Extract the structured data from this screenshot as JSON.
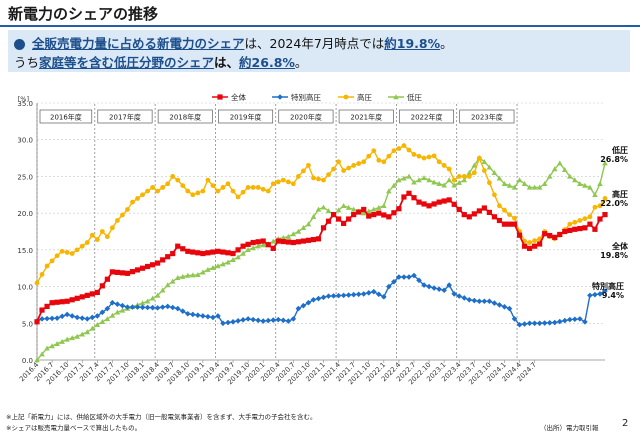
{
  "header": {
    "title": "新電力のシェアの推移",
    "l1_part1": "全販売電力量に占める新電力のシェア",
    "l1_part2": "は、2024年7月時点では",
    "l1_part3": "約19.8%",
    "l1_part4": "。",
    "l2_part1": "うち",
    "l2_part2": "家庭等を含む低圧分野のシェア",
    "l2_part3": "は、",
    "l2_part4": "約26.8%",
    "l2_part5": "。"
  },
  "colors": {
    "total": "#e8060d",
    "special": "#1e6fc9",
    "high": "#f7b500",
    "low": "#8fc750",
    "accent": "#1d4f8c"
  },
  "chart_data": {
    "type": "line",
    "title": "",
    "ylabel": "[%]",
    "ylim": [
      0,
      35
    ],
    "yticks": [
      "0.0",
      "5.0",
      "10.0",
      "15.0",
      "20.0",
      "25.0",
      "30.0",
      "35.0"
    ],
    "x_tick_labels": [
      "2016.4",
      "2016.7",
      "2016.10",
      "2017.1",
      "2017.4",
      "2017.7",
      "2017.10",
      "2018.1",
      "2018.4",
      "2018.7",
      "2018.10",
      "2019.1",
      "2019.4",
      "2019.7",
      "2019.10",
      "2020.1",
      "2020.4",
      "2020.7",
      "2020.10",
      "2021.1",
      "2021.4",
      "2021.7",
      "2021.10",
      "2022.1",
      "2022.4",
      "2022.7",
      "2022.10",
      "2023.1",
      "2023.4",
      "2023.7",
      "2023.10",
      "2024.1",
      "2024.4",
      "2024.7"
    ],
    "fiscal_years": [
      "2016年度",
      "2017年度",
      "2018年度",
      "2019年度",
      "2020年度",
      "2021年度",
      "2022年度",
      "2023年度"
    ],
    "legend": [
      "全体",
      "特別高圧",
      "高圧",
      "低圧"
    ],
    "series": [
      {
        "name": "全体",
        "key": "total",
        "anchors": [
          [
            0,
            5.2
          ],
          [
            1,
            6.8
          ],
          [
            3,
            7.8
          ],
          [
            6,
            8.0
          ],
          [
            9,
            8.6
          ],
          [
            12,
            9.2
          ],
          [
            14,
            11.0
          ],
          [
            15,
            12.0
          ],
          [
            18,
            11.8
          ],
          [
            21,
            12.5
          ],
          [
            24,
            13.2
          ],
          [
            27,
            14.5
          ],
          [
            28,
            15.5
          ],
          [
            30,
            14.8
          ],
          [
            33,
            14.5
          ],
          [
            36,
            14.8
          ],
          [
            39,
            14.5
          ],
          [
            41,
            15.5
          ],
          [
            43,
            16.0
          ],
          [
            45,
            16.2
          ],
          [
            47,
            15.2
          ],
          [
            48,
            16.2
          ],
          [
            51,
            16.0
          ],
          [
            54,
            16.3
          ],
          [
            56,
            16.5
          ],
          [
            57,
            18.0
          ],
          [
            59,
            19.8
          ],
          [
            61,
            18.6
          ],
          [
            63,
            19.8
          ],
          [
            65,
            20.5
          ],
          [
            66,
            19.6
          ],
          [
            68,
            20.0
          ],
          [
            70,
            19.5
          ],
          [
            72,
            20.6
          ],
          [
            73,
            22.2
          ],
          [
            74,
            22.7
          ],
          [
            76,
            21.5
          ],
          [
            78,
            21.0
          ],
          [
            80,
            21.5
          ],
          [
            82,
            21.8
          ],
          [
            83,
            21.2
          ],
          [
            85,
            19.8
          ],
          [
            86,
            19.5
          ],
          [
            88,
            20.3
          ],
          [
            89,
            20.7
          ],
          [
            91,
            19.5
          ],
          [
            93,
            18.5
          ],
          [
            95,
            18.5
          ],
          [
            96,
            17.0
          ],
          [
            97,
            15.5
          ],
          [
            98,
            15.2
          ],
          [
            100,
            15.8
          ],
          [
            101,
            17.2
          ],
          [
            103,
            16.7
          ],
          [
            105,
            17.5
          ],
          [
            107,
            17.8
          ],
          [
            109,
            18.0
          ],
          [
            110,
            18.5
          ],
          [
            111,
            17.8
          ],
          [
            112,
            19.2
          ],
          [
            113,
            19.8
          ]
        ],
        "end_label": "全体\n19.8%"
      },
      {
        "name": "特別高圧",
        "key": "special",
        "anchors": [
          [
            0,
            5.3
          ],
          [
            1,
            5.6
          ],
          [
            4,
            5.7
          ],
          [
            6,
            6.2
          ],
          [
            8,
            5.8
          ],
          [
            10,
            5.6
          ],
          [
            12,
            6.0
          ],
          [
            14,
            7.0
          ],
          [
            15,
            7.8
          ],
          [
            16,
            7.6
          ],
          [
            18,
            7.2
          ],
          [
            20,
            7.2
          ],
          [
            24,
            7.1
          ],
          [
            26,
            7.3
          ],
          [
            28,
            7.0
          ],
          [
            30,
            6.3
          ],
          [
            33,
            6.0
          ],
          [
            35,
            5.8
          ],
          [
            36,
            6.0
          ],
          [
            37,
            5.0
          ],
          [
            39,
            5.2
          ],
          [
            42,
            5.6
          ],
          [
            45,
            5.3
          ],
          [
            48,
            5.5
          ],
          [
            50,
            5.3
          ],
          [
            51,
            5.6
          ],
          [
            52,
            7.0
          ],
          [
            55,
            8.2
          ],
          [
            58,
            8.7
          ],
          [
            61,
            8.8
          ],
          [
            63,
            8.9
          ],
          [
            65,
            9.0
          ],
          [
            67,
            9.3
          ],
          [
            69,
            8.6
          ],
          [
            70,
            10.0
          ],
          [
            72,
            11.3
          ],
          [
            74,
            11.3
          ],
          [
            75,
            11.5
          ],
          [
            77,
            10.2
          ],
          [
            79,
            9.8
          ],
          [
            81,
            9.5
          ],
          [
            82,
            10.2
          ],
          [
            83,
            9.0
          ],
          [
            84,
            8.7
          ],
          [
            86,
            8.2
          ],
          [
            88,
            8.0
          ],
          [
            90,
            8.0
          ],
          [
            92,
            7.5
          ],
          [
            94,
            7.0
          ],
          [
            95,
            5.6
          ],
          [
            96,
            4.8
          ],
          [
            98,
            5.0
          ],
          [
            100,
            5.0
          ],
          [
            103,
            5.1
          ],
          [
            106,
            5.5
          ],
          [
            108,
            5.6
          ],
          [
            109,
            5.2
          ],
          [
            110,
            8.8
          ],
          [
            112,
            9.0
          ],
          [
            113,
            9.4
          ]
        ],
        "end_label": "特別高圧\n9.4%"
      },
      {
        "name": "高圧",
        "key": "high",
        "anchors": [
          [
            0,
            10.5
          ],
          [
            2,
            12.8
          ],
          [
            4,
            14.2
          ],
          [
            5,
            14.8
          ],
          [
            7,
            14.5
          ],
          [
            8,
            15.0
          ],
          [
            10,
            16.0
          ],
          [
            11,
            17.0
          ],
          [
            12,
            16.4
          ],
          [
            13,
            17.5
          ],
          [
            14,
            16.8
          ],
          [
            15,
            18.0
          ],
          [
            16,
            19.0
          ],
          [
            18,
            20.5
          ],
          [
            19,
            21.5
          ],
          [
            21,
            22.5
          ],
          [
            23,
            23.5
          ],
          [
            24,
            23.0
          ],
          [
            26,
            24.0
          ],
          [
            27,
            25.0
          ],
          [
            28,
            24.5
          ],
          [
            30,
            23.0
          ],
          [
            31,
            22.5
          ],
          [
            33,
            23.0
          ],
          [
            34,
            24.5
          ],
          [
            36,
            23.0
          ],
          [
            38,
            24.0
          ],
          [
            39,
            23.0
          ],
          [
            40,
            22.2
          ],
          [
            42,
            23.5
          ],
          [
            44,
            23.5
          ],
          [
            46,
            23.0
          ],
          [
            47,
            24.0
          ],
          [
            49,
            24.5
          ],
          [
            51,
            24.0
          ],
          [
            52,
            25.0
          ],
          [
            54,
            26.5
          ],
          [
            55,
            24.8
          ],
          [
            57,
            24.5
          ],
          [
            59,
            26.0
          ],
          [
            60,
            27.0
          ],
          [
            61,
            25.8
          ],
          [
            63,
            26.5
          ],
          [
            65,
            27.0
          ],
          [
            67,
            28.5
          ],
          [
            68,
            27.2
          ],
          [
            69,
            27.0
          ],
          [
            71,
            28.5
          ],
          [
            72,
            28.8
          ],
          [
            73,
            29.2
          ],
          [
            75,
            28.0
          ],
          [
            77,
            27.5
          ],
          [
            79,
            27.8
          ],
          [
            80,
            27.0
          ],
          [
            82,
            26.0
          ],
          [
            83,
            24.5
          ],
          [
            84,
            25.0
          ],
          [
            86,
            25.0
          ],
          [
            87,
            25.5
          ],
          [
            88,
            27.5
          ],
          [
            89,
            25.8
          ],
          [
            91,
            22.5
          ],
          [
            92,
            21.0
          ],
          [
            94,
            19.8
          ],
          [
            95,
            19.3
          ],
          [
            96,
            17.5
          ],
          [
            97,
            16.2
          ],
          [
            98,
            16.0
          ],
          [
            100,
            16.5
          ],
          [
            101,
            17.5
          ],
          [
            102,
            16.8
          ],
          [
            103,
            16.5
          ],
          [
            104,
            17.0
          ],
          [
            106,
            18.5
          ],
          [
            108,
            19.0
          ],
          [
            110,
            19.5
          ],
          [
            111,
            20.8
          ],
          [
            112,
            21.0
          ],
          [
            113,
            22.0
          ]
        ],
        "end_label": "高圧\n22.0%"
      },
      {
        "name": "低圧",
        "key": "low",
        "anchors": [
          [
            0,
            0.0
          ],
          [
            2,
            1.6
          ],
          [
            4,
            2.2
          ],
          [
            6,
            2.8
          ],
          [
            8,
            3.2
          ],
          [
            10,
            3.8
          ],
          [
            12,
            4.8
          ],
          [
            14,
            5.6
          ],
          [
            16,
            6.5
          ],
          [
            18,
            7.0
          ],
          [
            20,
            7.5
          ],
          [
            22,
            8.0
          ],
          [
            24,
            8.8
          ],
          [
            26,
            10.2
          ],
          [
            28,
            11.2
          ],
          [
            30,
            11.5
          ],
          [
            32,
            11.6
          ],
          [
            34,
            12.3
          ],
          [
            36,
            12.8
          ],
          [
            38,
            13.3
          ],
          [
            40,
            14.0
          ],
          [
            42,
            15.0
          ],
          [
            44,
            15.5
          ],
          [
            46,
            15.8
          ],
          [
            48,
            16.5
          ],
          [
            50,
            16.8
          ],
          [
            52,
            17.5
          ],
          [
            54,
            18.5
          ],
          [
            56,
            20.5
          ],
          [
            57,
            20.8
          ],
          [
            59,
            19.8
          ],
          [
            61,
            21.0
          ],
          [
            63,
            20.5
          ],
          [
            65,
            20.0
          ],
          [
            67,
            20.5
          ],
          [
            69,
            21.0
          ],
          [
            70,
            23.0
          ],
          [
            72,
            24.5
          ],
          [
            74,
            25.0
          ],
          [
            75,
            24.2
          ],
          [
            77,
            24.8
          ],
          [
            79,
            24.2
          ],
          [
            81,
            23.8
          ],
          [
            82,
            24.5
          ],
          [
            83,
            23.8
          ],
          [
            85,
            24.5
          ],
          [
            87,
            26.5
          ],
          [
            88,
            27.5
          ],
          [
            89,
            27.0
          ],
          [
            91,
            25.5
          ],
          [
            93,
            24.0
          ],
          [
            95,
            23.5
          ],
          [
            96,
            24.5
          ],
          [
            98,
            23.5
          ],
          [
            100,
            23.5
          ],
          [
            101,
            24.0
          ],
          [
            103,
            26.0
          ],
          [
            104,
            26.8
          ],
          [
            106,
            25.0
          ],
          [
            108,
            24.0
          ],
          [
            110,
            23.5
          ],
          [
            111,
            22.5
          ],
          [
            112,
            24.0
          ],
          [
            113,
            26.8
          ]
        ],
        "end_label": "低圧\n26.8%"
      }
    ]
  },
  "footer": {
    "note1": "※上記「新電力」には、供給区域外の大手電力（旧一般電気事業者）を含まず、大手電力の子会社を含む。",
    "note2": "※シェアは販売電力量ベースで算出したもの。",
    "source": "（出所）電力取引報",
    "page": "2"
  }
}
